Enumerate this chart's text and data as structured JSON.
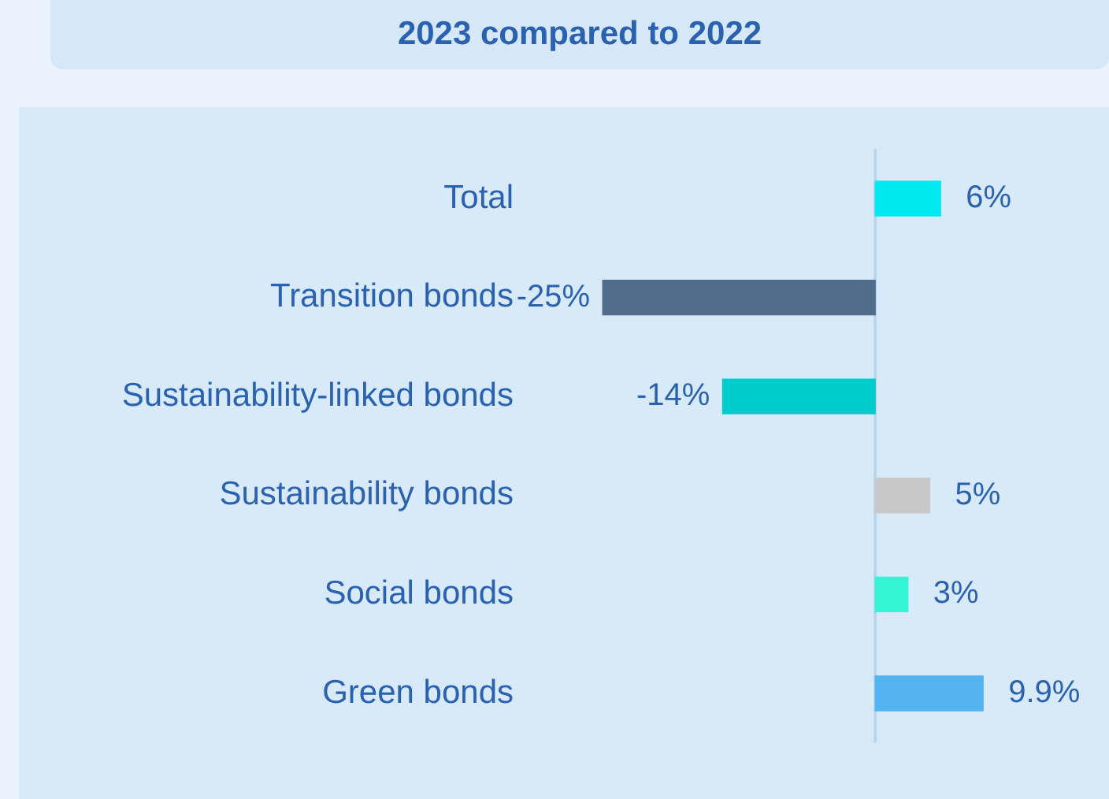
{
  "chart_data": {
    "type": "bar",
    "orientation": "horizontal",
    "title": "2023 compared to 2022",
    "categories": [
      "Total",
      "Transition bonds",
      "Sustainability-linked bonds",
      "Sustainability bonds",
      "Social bonds",
      "Green bonds"
    ],
    "values": [
      6,
      -25,
      -14,
      5,
      3,
      9.9
    ],
    "colors": [
      "#00e8f0",
      "#506e8c",
      "#00cccc",
      "#c8c8c8",
      "#33f5d5",
      "#55b4f0"
    ],
    "value_labels": [
      "6%",
      "-25%",
      "-14%",
      "5%",
      "3%",
      "9.9%"
    ],
    "tick_labels": "y",
    "ref_lines": [
      {
        "axis": "x",
        "value": 0,
        "color": "#b8d4ee"
      }
    ]
  }
}
